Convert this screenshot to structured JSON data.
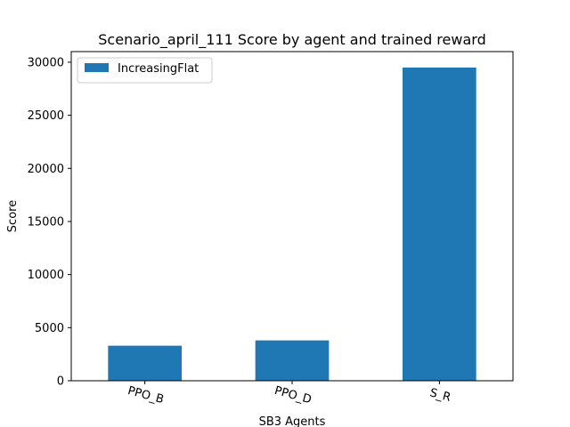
{
  "chart_data": {
    "type": "bar",
    "title": "Scenario_april_111 Score by agent and trained reward",
    "xlabel": "SB3 Agents",
    "ylabel": "Score",
    "categories": [
      "PPO_B",
      "PPO_D",
      "S_R"
    ],
    "series": [
      {
        "name": "IncreasingFlat",
        "values": [
          3300,
          3800,
          29500
        ],
        "color": "#1f77b4"
      }
    ],
    "ylim": [
      0,
      31000
    ],
    "yticks": [
      0,
      5000,
      10000,
      15000,
      20000,
      25000,
      30000
    ],
    "ytick_labels": [
      "0",
      "5000",
      "10000",
      "15000",
      "20000",
      "25000",
      "30000"
    ],
    "grid": false,
    "legend_position": "top-left"
  }
}
